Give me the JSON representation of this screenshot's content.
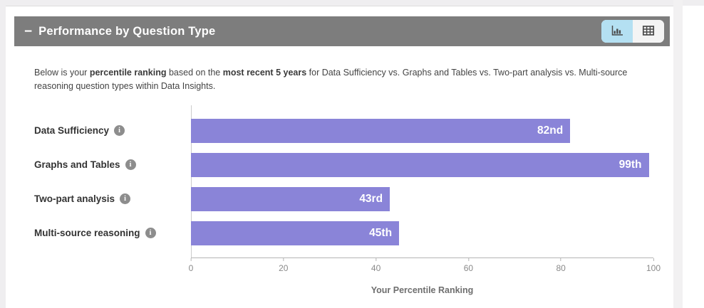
{
  "panel": {
    "collapse_icon": "−",
    "title": "Performance by Question Type",
    "view_toggle": {
      "buttons": [
        {
          "name": "chart-view",
          "icon": "bar-chart-icon",
          "active": true
        },
        {
          "name": "table-view",
          "icon": "table-icon",
          "active": false
        }
      ],
      "active_bg": "#b4e0f2"
    },
    "header_bg": "#7d7d7d"
  },
  "description": {
    "segments": [
      {
        "text": "Below is your ",
        "bold": false
      },
      {
        "text": "percentile ranking",
        "bold": true
      },
      {
        "text": " based on the ",
        "bold": false
      },
      {
        "text": "most recent 5 years",
        "bold": true
      },
      {
        "text": " for Data Sufficiency vs. Graphs and Tables vs. Two-part analysis vs. Multi-source reasoning question types within Data Insights.",
        "bold": false
      }
    ]
  },
  "chart_data": {
    "type": "bar",
    "orientation": "horizontal",
    "categories": [
      "Data Sufficiency",
      "Graphs and Tables",
      "Two-part analysis",
      "Multi-source reasoning"
    ],
    "values": [
      82,
      99,
      43,
      45
    ],
    "value_labels": [
      "82nd",
      "99th",
      "43rd",
      "45th"
    ],
    "xlim": [
      0,
      100
    ],
    "xticks": [
      0,
      20,
      40,
      60,
      80,
      100
    ],
    "xlabel": "Your Percentile Ranking",
    "bar_color": "#8a84d8",
    "grid": false,
    "legend": null,
    "row_info_icon": "info-circle-icon"
  }
}
